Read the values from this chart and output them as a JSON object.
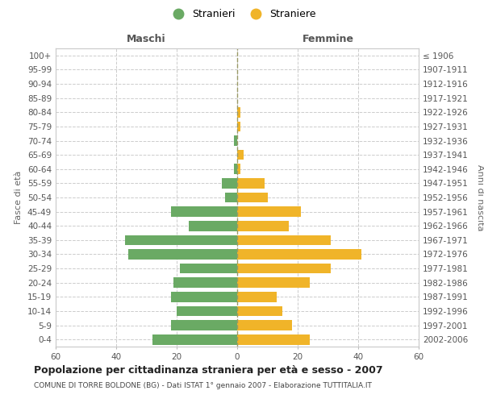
{
  "age_groups": [
    "100+",
    "95-99",
    "90-94",
    "85-89",
    "80-84",
    "75-79",
    "70-74",
    "65-69",
    "60-64",
    "55-59",
    "50-54",
    "45-49",
    "40-44",
    "35-39",
    "30-34",
    "25-29",
    "20-24",
    "15-19",
    "10-14",
    "5-9",
    "0-4"
  ],
  "birth_years": [
    "≤ 1906",
    "1907-1911",
    "1912-1916",
    "1917-1921",
    "1922-1926",
    "1927-1931",
    "1932-1936",
    "1937-1941",
    "1942-1946",
    "1947-1951",
    "1952-1956",
    "1957-1961",
    "1962-1966",
    "1967-1971",
    "1972-1976",
    "1977-1981",
    "1982-1986",
    "1987-1991",
    "1992-1996",
    "1997-2001",
    "2002-2006"
  ],
  "maschi": [
    0,
    0,
    0,
    0,
    0,
    0,
    1,
    0,
    1,
    5,
    4,
    22,
    16,
    37,
    36,
    19,
    21,
    22,
    20,
    22,
    28
  ],
  "femmine": [
    0,
    0,
    0,
    0,
    1,
    1,
    0,
    2,
    1,
    9,
    10,
    21,
    17,
    31,
    41,
    31,
    24,
    13,
    15,
    18,
    24
  ],
  "maschi_color": "#6aaa64",
  "femmine_color": "#f0b429",
  "background_color": "#ffffff",
  "grid_color": "#cccccc",
  "title": "Popolazione per cittadinanza straniera per età e sesso - 2007",
  "subtitle": "COMUNE DI TORRE BOLDONE (BG) - Dati ISTAT 1° gennaio 2007 - Elaborazione TUTTITALIA.IT",
  "xlabel_left": "Maschi",
  "xlabel_right": "Femmine",
  "ylabel_left": "Fasce di età",
  "ylabel_right": "Anni di nascita",
  "legend_stranieri": "Stranieri",
  "legend_straniere": "Straniere",
  "xlim": 60
}
